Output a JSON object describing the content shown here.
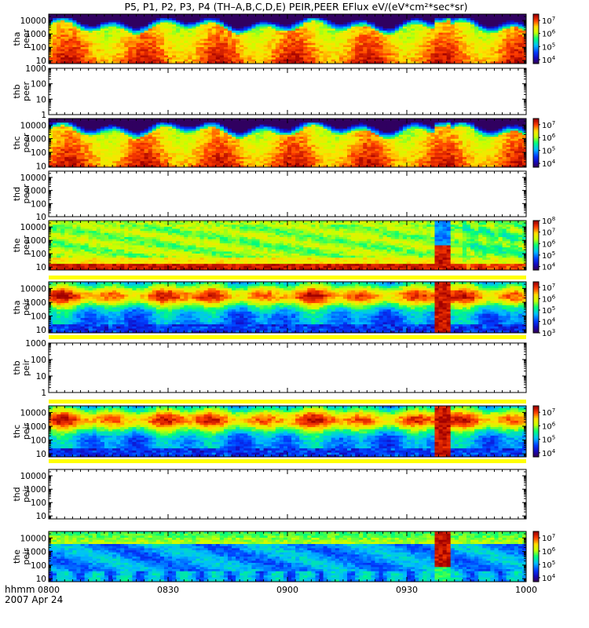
{
  "title": "P5, P1, P2, P3, P4 (TH–A,B,C,D,E) PEIR,PEER EFlux eV/(eV*cm²*sec*sr)",
  "chart_data": {
    "type": "heatmap",
    "title": "P5, P1, P2, P3, P4 (TH–A,B,C,D,E) PEIR,PEER EFlux eV/(eV*cm²*sec*sr)",
    "xlabel": "hhmm",
    "date_label": "2007 Apr 24",
    "x_ticks": [
      "0800",
      "0830",
      "0900",
      "0930",
      "1000"
    ],
    "panels": [
      {
        "probe": "tha",
        "instrument": "peer",
        "has_data": true,
        "y_ticks": [
          "10",
          "100",
          "1000",
          "10000"
        ],
        "yscale": "log",
        "yrange": [
          6,
          30000
        ],
        "cbar_exponents": [
          "7",
          "6",
          "5",
          "4"
        ],
        "cbar_range": [
          5000,
          30000000
        ],
        "profile": "electron"
      },
      {
        "probe": "thb",
        "instrument": "peer",
        "has_data": false,
        "y_ticks": [
          "1",
          "10",
          "100",
          "1000"
        ],
        "yscale": "log",
        "yrange": [
          1,
          1000
        ]
      },
      {
        "probe": "thc",
        "instrument": "peer",
        "has_data": true,
        "y_ticks": [
          "10",
          "100",
          "1000",
          "10000"
        ],
        "yscale": "log",
        "yrange": [
          8,
          30000
        ],
        "cbar_exponents": [
          "7",
          "6",
          "5",
          "4"
        ],
        "cbar_range": [
          5000,
          30000000
        ],
        "profile": "electron"
      },
      {
        "probe": "thd",
        "instrument": "peer",
        "has_data": false,
        "y_ticks": [
          "10",
          "100",
          "1000",
          "10000"
        ],
        "yscale": "log",
        "yrange": [
          10,
          30000
        ]
      },
      {
        "probe": "the",
        "instrument": "peer",
        "has_data": true,
        "y_ticks": [
          "10",
          "100",
          "1000",
          "10000"
        ],
        "yscale": "log",
        "yrange": [
          6,
          30000
        ],
        "cbar_exponents": [
          "8",
          "7",
          "6",
          "5",
          "4"
        ],
        "cbar_range": [
          5000,
          100000000
        ],
        "profile": "electron_e"
      },
      {
        "probe": "tha",
        "instrument": "peir",
        "has_data": true,
        "y_ticks": [
          "10",
          "100",
          "1000",
          "10000"
        ],
        "yscale": "log",
        "yrange": [
          6,
          30000
        ],
        "cbar_exponents": [
          "7",
          "6",
          "5",
          "4",
          "3"
        ],
        "cbar_range": [
          1000,
          30000000
        ],
        "profile": "ion"
      },
      {
        "probe": "thb",
        "instrument": "peir",
        "has_data": false,
        "y_ticks": [
          "1",
          "10",
          "100",
          "1000"
        ],
        "yscale": "log",
        "yrange": [
          1,
          1000
        ]
      },
      {
        "probe": "thc",
        "instrument": "peir",
        "has_data": true,
        "y_ticks": [
          "10",
          "100",
          "1000",
          "10000"
        ],
        "yscale": "log",
        "yrange": [
          6,
          30000
        ],
        "cbar_exponents": [
          "7",
          "6",
          "5",
          "4"
        ],
        "cbar_range": [
          5000,
          30000000
        ],
        "profile": "ion"
      },
      {
        "probe": "thd",
        "instrument": "peir",
        "has_data": false,
        "y_ticks": [
          "10",
          "100",
          "1000",
          "10000"
        ],
        "yscale": "log",
        "yrange": [
          6,
          30000
        ]
      },
      {
        "probe": "the",
        "instrument": "peir",
        "has_data": true,
        "y_ticks": [
          "10",
          "100",
          "1000",
          "10000"
        ],
        "yscale": "log",
        "yrange": [
          6,
          30000
        ],
        "cbar_exponents": [
          "7",
          "6",
          "5",
          "4"
        ],
        "cbar_range": [
          5000,
          30000000
        ],
        "profile": "ion_e"
      }
    ]
  }
}
